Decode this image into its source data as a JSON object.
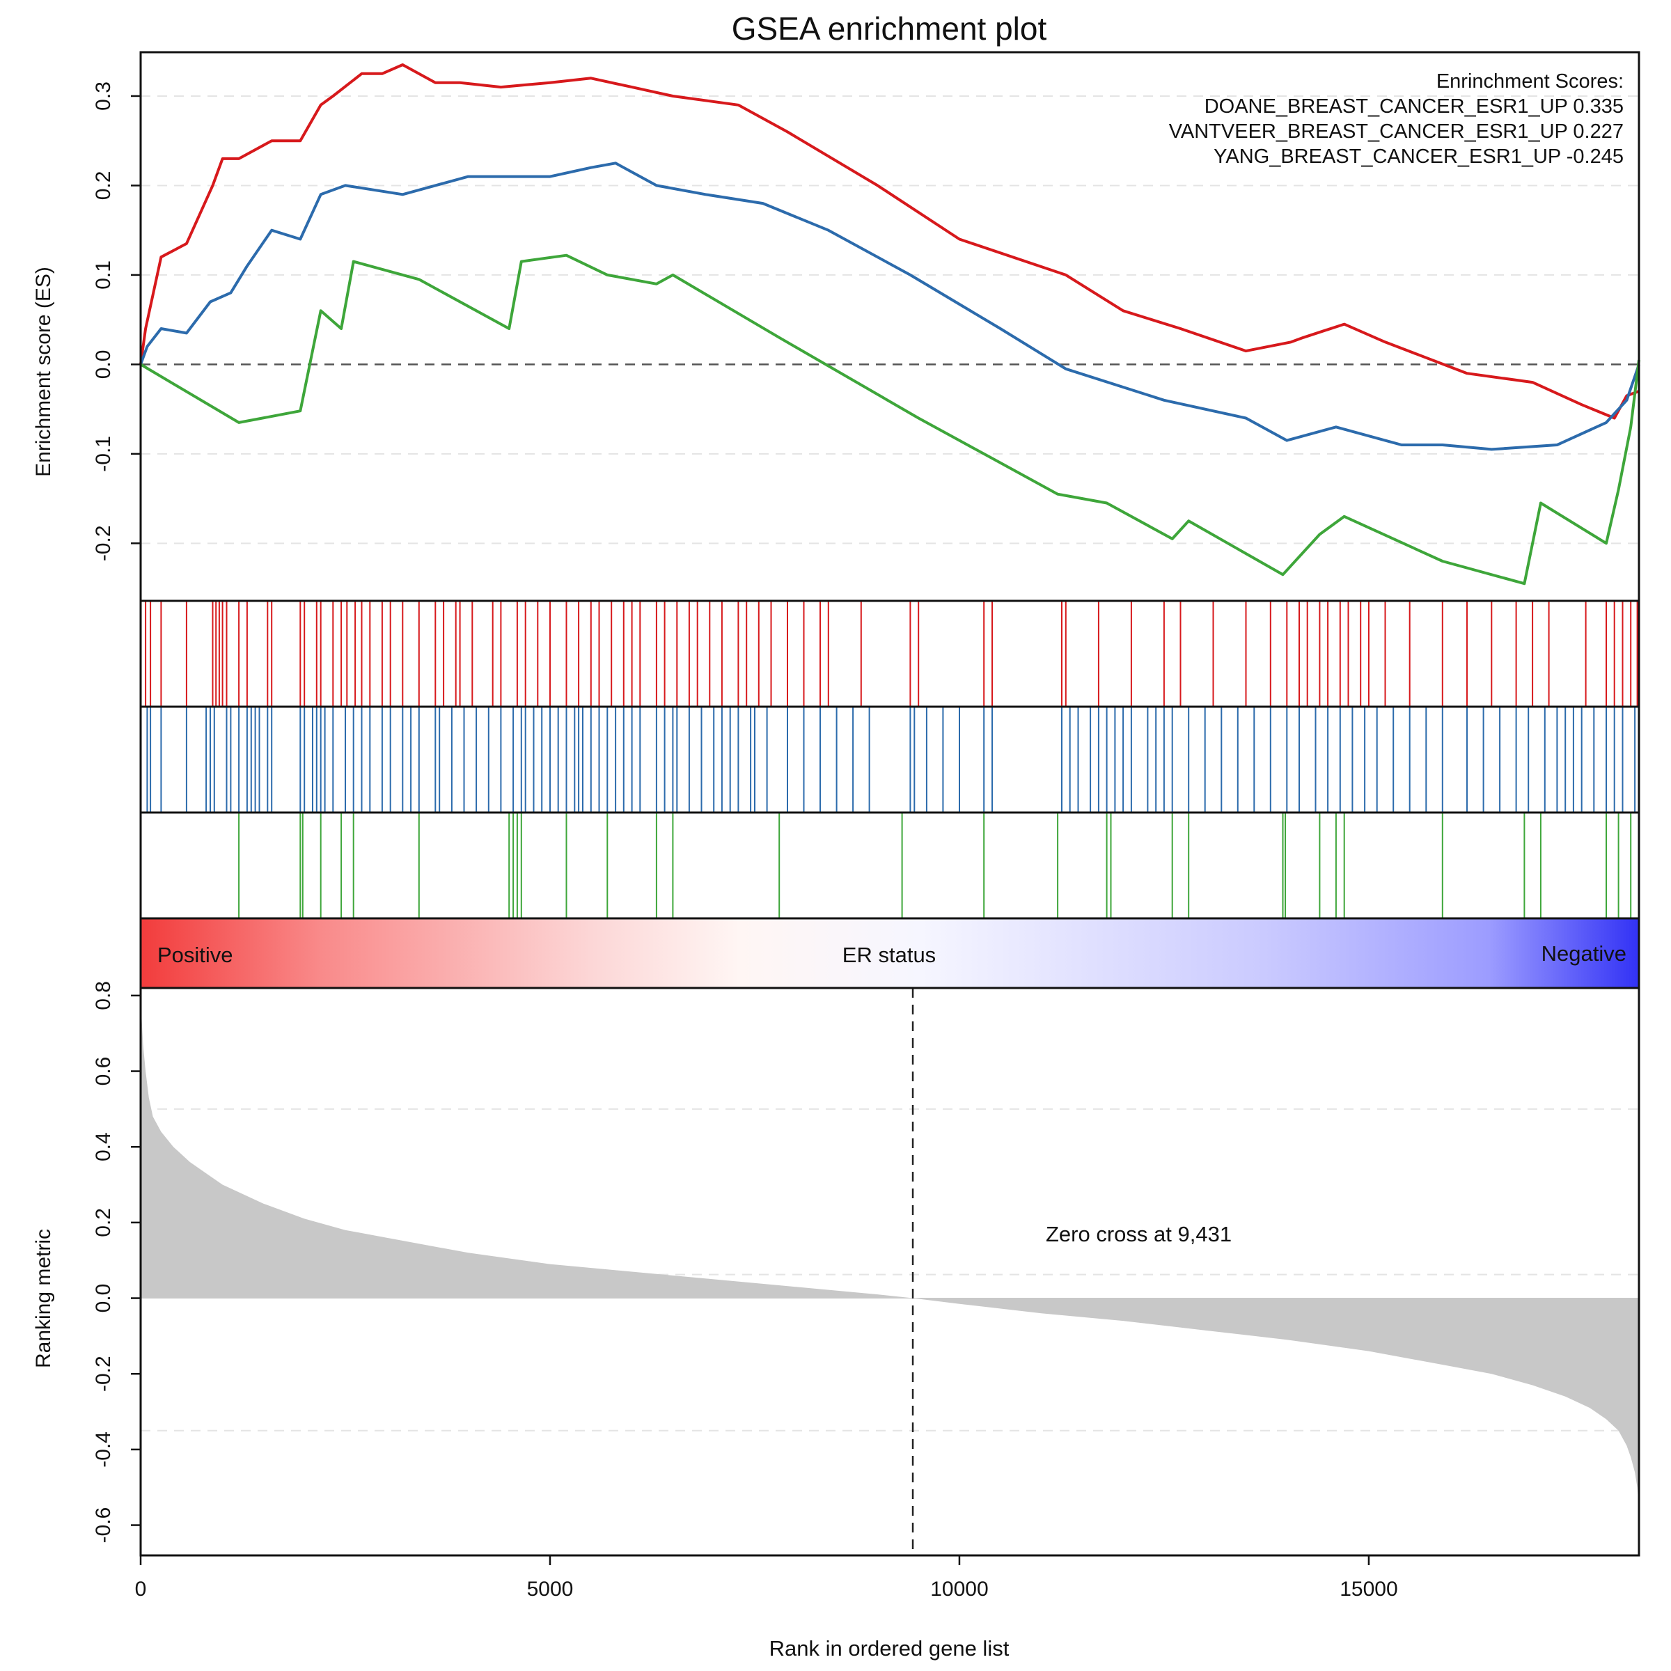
{
  "title": "GSEA enrichment plot",
  "legend": {
    "heading": "Enrinchment Scores:",
    "entries": [
      "DOANE_BREAST_CANCER_ESR1_UP 0.335",
      "VANTVEER_BREAST_CANCER_ESR1_UP 0.227",
      "YANG_BREAST_CANCER_ESR1_UP -0.245"
    ]
  },
  "colors": {
    "doane": "#d7191c",
    "vantveer": "#2c6bac",
    "yang": "#3ea63a",
    "metric_fill": "#c8c8c8",
    "gradient_positive": "#f23c3c",
    "gradient_negative": "#3232f5"
  },
  "phenotype_bar": {
    "left_label": "Positive",
    "center_label": "ER status",
    "right_label": "Negative"
  },
  "zero_cross_label": "Zero cross at 9,431",
  "chart_data": [
    {
      "type": "line",
      "title": "GSEA enrichment plot",
      "ylabel": "Enrichment score (ES)",
      "xlim": [
        0,
        18300
      ],
      "ylim": [
        -0.245,
        0.335
      ],
      "yticks": [
        -0.2,
        -0.1,
        0.0,
        0.1,
        0.2,
        0.3
      ],
      "ytick_labels": [
        "-0.2",
        "-0.1",
        "0.0",
        "0.1",
        "0.2",
        "0.3"
      ],
      "series": [
        {
          "name": "DOANE_BREAST_CANCER_ESR1_UP",
          "es": 0.335,
          "color_key": "doane",
          "x": [
            0,
            60,
            60,
            250,
            250,
            560,
            560,
            880,
            880,
            1000,
            1000,
            1200,
            1200,
            1600,
            1600,
            1950,
            1950,
            2200,
            2200,
            2350,
            2350,
            2700,
            2700,
            2950,
            2950,
            3200,
            3200,
            3600,
            3600,
            3900,
            3900,
            4400,
            4400,
            5000,
            5000,
            5500,
            5500,
            6000,
            6000,
            6500,
            6500,
            7300,
            7300,
            7900,
            7900,
            9000,
            9000,
            10000,
            10000,
            11300,
            11300,
            12000,
            12000,
            12700,
            12700,
            13500,
            13500,
            14050,
            14050,
            14200,
            14200,
            14700,
            14700,
            15200,
            15200,
            16200,
            16200,
            17000,
            17000,
            17600,
            17600,
            18000,
            18000,
            18150,
            18150,
            18300
          ],
          "y": [
            0,
            0.04,
            0.04,
            0.12,
            0.12,
            0.135,
            0.135,
            0.2,
            0.2,
            0.23,
            0.23,
            0.23,
            0.23,
            0.25,
            0.25,
            0.25,
            0.25,
            0.29,
            0.29,
            0.3,
            0.3,
            0.325,
            0.325,
            0.325,
            0.325,
            0.335,
            0.335,
            0.315,
            0.315,
            0.315,
            0.315,
            0.31,
            0.31,
            0.315,
            0.315,
            0.32,
            0.32,
            0.31,
            0.31,
            0.3,
            0.3,
            0.29,
            0.29,
            0.26,
            0.26,
            0.2,
            0.2,
            0.14,
            0.14,
            0.1,
            0.1,
            0.06,
            0.06,
            0.04,
            0.04,
            0.015,
            0.015,
            0.025,
            0.025,
            0.03,
            0.03,
            0.045,
            0.045,
            0.025,
            0.025,
            -0.01,
            -0.01,
            -0.02,
            -0.02,
            -0.045,
            -0.045,
            -0.06,
            -0.06,
            -0.035,
            -0.035,
            -0.03
          ]
        },
        {
          "name": "VANTVEER_BREAST_CANCER_ESR1_UP",
          "es": 0.227,
          "color_key": "vantveer",
          "x": [
            0,
            80,
            80,
            250,
            250,
            560,
            560,
            850,
            850,
            1100,
            1100,
            1300,
            1300,
            1600,
            1600,
            1950,
            1950,
            2200,
            2200,
            2500,
            2500,
            3200,
            3200,
            3600,
            3600,
            4000,
            4000,
            4500,
            4500,
            5000,
            5000,
            5500,
            5500,
            5800,
            5800,
            6300,
            6300,
            6900,
            6900,
            7600,
            7600,
            8400,
            8400,
            9400,
            9400,
            10500,
            10500,
            11300,
            11300,
            12500,
            12500,
            13500,
            13500,
            14000,
            14000,
            14600,
            14600,
            15400,
            15400,
            15900,
            15900,
            16500,
            16500,
            17300,
            17300,
            17900,
            17900,
            18150,
            18150,
            18300
          ],
          "y": [
            0,
            0.02,
            0.02,
            0.04,
            0.04,
            0.035,
            0.035,
            0.07,
            0.07,
            0.08,
            0.08,
            0.11,
            0.11,
            0.15,
            0.15,
            0.14,
            0.14,
            0.19,
            0.19,
            0.2,
            0.2,
            0.19,
            0.19,
            0.2,
            0.2,
            0.21,
            0.21,
            0.21,
            0.21,
            0.21,
            0.21,
            0.22,
            0.22,
            0.225,
            0.225,
            0.2,
            0.2,
            0.19,
            0.19,
            0.18,
            0.18,
            0.15,
            0.15,
            0.1,
            0.1,
            0.04,
            0.04,
            -0.005,
            -0.005,
            -0.04,
            -0.04,
            -0.06,
            -0.06,
            -0.085,
            -0.085,
            -0.07,
            -0.07,
            -0.09,
            -0.09,
            -0.09,
            -0.09,
            -0.095,
            -0.095,
            -0.09,
            -0.09,
            -0.065,
            -0.065,
            -0.04,
            -0.04,
            0.0
          ]
        },
        {
          "name": "YANG_BREAST_CANCER_ESR1_UP",
          "es": -0.245,
          "color_key": "yang",
          "x": [
            0,
            1200,
            1200,
            1950,
            1950,
            2200,
            2200,
            2450,
            2450,
            2600,
            2600,
            3400,
            3400,
            4500,
            4500,
            4650,
            4650,
            5200,
            5200,
            5700,
            5700,
            6300,
            6300,
            6500,
            6500,
            7800,
            7800,
            9500,
            9500,
            10400,
            10400,
            11200,
            11200,
            11800,
            11800,
            12600,
            12600,
            12800,
            12800,
            13950,
            13950,
            14400,
            14400,
            14700,
            14700,
            15900,
            15900,
            16900,
            16900,
            17100,
            17100,
            17900,
            17900,
            18050,
            18050,
            18200,
            18200,
            18300
          ],
          "y": [
            0,
            -0.065,
            -0.065,
            -0.052,
            -0.052,
            0.06,
            0.06,
            0.04,
            0.04,
            0.115,
            0.115,
            0.095,
            0.095,
            0.04,
            0.04,
            0.115,
            0.115,
            0.122,
            0.122,
            0.1,
            0.1,
            0.09,
            0.09,
            0.1,
            0.1,
            0.03,
            0.03,
            -0.06,
            -0.06,
            -0.105,
            -0.105,
            -0.145,
            -0.145,
            -0.155,
            -0.155,
            -0.195,
            -0.195,
            -0.175,
            -0.175,
            -0.235,
            -0.235,
            -0.19,
            -0.19,
            -0.17,
            -0.17,
            -0.22,
            -0.22,
            -0.245,
            -0.245,
            -0.155,
            -0.155,
            -0.2,
            -0.2,
            -0.14,
            -0.14,
            -0.07,
            -0.07,
            0.005
          ]
        }
      ]
    },
    {
      "type": "barcode",
      "description": "Positions of gene-set members along the ranked list",
      "xlim": [
        0,
        18300
      ],
      "rows": [
        {
          "name": "DOANE_BREAST_CANCER_ESR1_UP",
          "color_key": "doane",
          "positions": [
            60,
            120,
            250,
            560,
            880,
            920,
            960,
            1000,
            1050,
            1200,
            1300,
            1550,
            1600,
            1950,
            2000,
            2150,
            2200,
            2350,
            2450,
            2520,
            2620,
            2700,
            2800,
            2950,
            3050,
            3200,
            3400,
            3600,
            3700,
            3850,
            3900,
            4050,
            4300,
            4400,
            4600,
            4700,
            4850,
            5000,
            5200,
            5350,
            5500,
            5600,
            5750,
            5900,
            6000,
            6100,
            6300,
            6400,
            6550,
            6700,
            6800,
            6950,
            7100,
            7300,
            7400,
            7550,
            7700,
            7900,
            8100,
            8300,
            8400,
            8800,
            9400,
            9500,
            10300,
            10400,
            11250,
            11300,
            11700,
            12100,
            12500,
            12700,
            13100,
            13500,
            13800,
            14000,
            14150,
            14250,
            14400,
            14500,
            14650,
            14750,
            14900,
            15000,
            15200,
            15500,
            15900,
            16200,
            16500,
            16800,
            17000,
            17200,
            17650,
            17900,
            18000,
            18100,
            18200,
            18280
          ]
        },
        {
          "name": "VANTVEER_BREAST_CANCER_ESR1_UP",
          "color_key": "vantveer",
          "positions": [
            80,
            120,
            250,
            560,
            800,
            850,
            900,
            1050,
            1100,
            1200,
            1300,
            1350,
            1400,
            1450,
            1550,
            1600,
            1950,
            2000,
            2100,
            2150,
            2200,
            2250,
            2350,
            2500,
            2600,
            2700,
            2800,
            2950,
            3050,
            3200,
            3300,
            3400,
            3600,
            3650,
            3800,
            3950,
            4100,
            4250,
            4400,
            4550,
            4650,
            4700,
            4800,
            4900,
            5000,
            5100,
            5200,
            5300,
            5350,
            5400,
            5500,
            5600,
            5700,
            5800,
            5900,
            6000,
            6100,
            6300,
            6400,
            6500,
            6550,
            6700,
            6850,
            7000,
            7100,
            7200,
            7300,
            7450,
            7500,
            7650,
            7900,
            8100,
            8300,
            8500,
            8700,
            8900,
            9400,
            9450,
            9600,
            9800,
            10000,
            10300,
            10400,
            11250,
            11350,
            11450,
            11600,
            11700,
            11800,
            11900,
            12000,
            12100,
            12300,
            12400,
            12500,
            12600,
            12800,
            13000,
            13200,
            13400,
            13600,
            13800,
            14000,
            14150,
            14350,
            14500,
            14650,
            14800,
            14950,
            15100,
            15300,
            15500,
            15700,
            15900,
            16200,
            16400,
            16600,
            16800,
            16950,
            17150,
            17300,
            17400,
            17500,
            17600,
            17750,
            17900,
            18000,
            18100,
            18250
          ]
        },
        {
          "name": "YANG_BREAST_CANCER_ESR1_UP",
          "color_key": "yang",
          "positions": [
            1200,
            1950,
            1980,
            2200,
            2450,
            2600,
            3400,
            4500,
            4550,
            4600,
            4650,
            5200,
            5700,
            6300,
            6500,
            7800,
            9300,
            10300,
            11200,
            11800,
            11850,
            12600,
            12800,
            13950,
            13980,
            14400,
            14600,
            14700,
            15900,
            16900,
            17100,
            17900,
            18050,
            18200
          ]
        }
      ]
    },
    {
      "type": "area",
      "ylabel": "Ranking metric",
      "xlabel": "Rank in ordered gene list",
      "xlim": [
        0,
        18300
      ],
      "ylim": [
        -0.68,
        0.82
      ],
      "xticks": [
        0,
        5000,
        10000,
        15000
      ],
      "xtick_labels": [
        "0",
        "5000",
        "10000",
        "15000"
      ],
      "yticks": [
        -0.6,
        -0.4,
        -0.2,
        0.0,
        0.2,
        0.4,
        0.6,
        0.8
      ],
      "ytick_labels": [
        "-0.6",
        "-0.4",
        "-0.2",
        "0.0",
        "0.2",
        "0.4",
        "0.6",
        "0.8"
      ],
      "zero_cross": 9431,
      "x": [
        0,
        10,
        30,
        60,
        100,
        150,
        250,
        400,
        600,
        800,
        1000,
        1500,
        2000,
        2500,
        3000,
        3500,
        4000,
        5000,
        6000,
        7000,
        8000,
        9000,
        9431,
        10000,
        11000,
        12000,
        13000,
        14000,
        15000,
        16000,
        16500,
        17000,
        17400,
        17700,
        17900,
        18050,
        18150,
        18200,
        18250,
        18280,
        18300
      ],
      "y": [
        0.82,
        0.75,
        0.67,
        0.6,
        0.53,
        0.48,
        0.44,
        0.4,
        0.36,
        0.33,
        0.3,
        0.25,
        0.21,
        0.18,
        0.16,
        0.14,
        0.12,
        0.09,
        0.07,
        0.05,
        0.03,
        0.01,
        0.0,
        -0.015,
        -0.04,
        -0.06,
        -0.085,
        -0.11,
        -0.14,
        -0.18,
        -0.2,
        -0.23,
        -0.26,
        -0.29,
        -0.32,
        -0.35,
        -0.39,
        -0.42,
        -0.46,
        -0.5,
        -0.55
      ]
    }
  ]
}
